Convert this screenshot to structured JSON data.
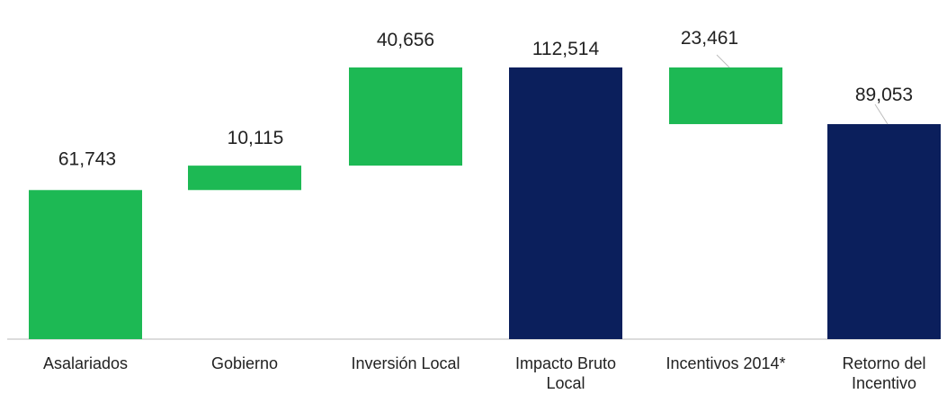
{
  "chart_data": {
    "type": "waterfall",
    "title": "",
    "xlabel": "",
    "ylabel": "",
    "ylim": [
      0,
      120000
    ],
    "grid": false,
    "legend": "none",
    "categories": [
      [
        "Asalariados"
      ],
      [
        "Gobierno"
      ],
      [
        "Inversión Local"
      ],
      [
        "Impacto Bruto",
        "Local"
      ],
      [
        "Incentivos 2014*"
      ],
      [
        "Retorno del",
        "Incentivo"
      ]
    ],
    "bars": [
      {
        "base": 0,
        "value": 61743,
        "label": "61,743",
        "kind": "increase"
      },
      {
        "base": 61743,
        "value": 10115,
        "label": "10,115",
        "kind": "increase"
      },
      {
        "base": 71858,
        "value": 40656,
        "label": "40,656",
        "kind": "increase"
      },
      {
        "base": 0,
        "value": 112514,
        "label": "112,514",
        "kind": "total"
      },
      {
        "base": 89053,
        "value": 23461,
        "label": "23,461",
        "kind": "decrease"
      },
      {
        "base": 0,
        "value": 89053,
        "label": "89,053",
        "kind": "total"
      }
    ],
    "colors": {
      "increase": "#1db954",
      "decrease": "#1db954",
      "total": "#0b1f5c"
    }
  }
}
